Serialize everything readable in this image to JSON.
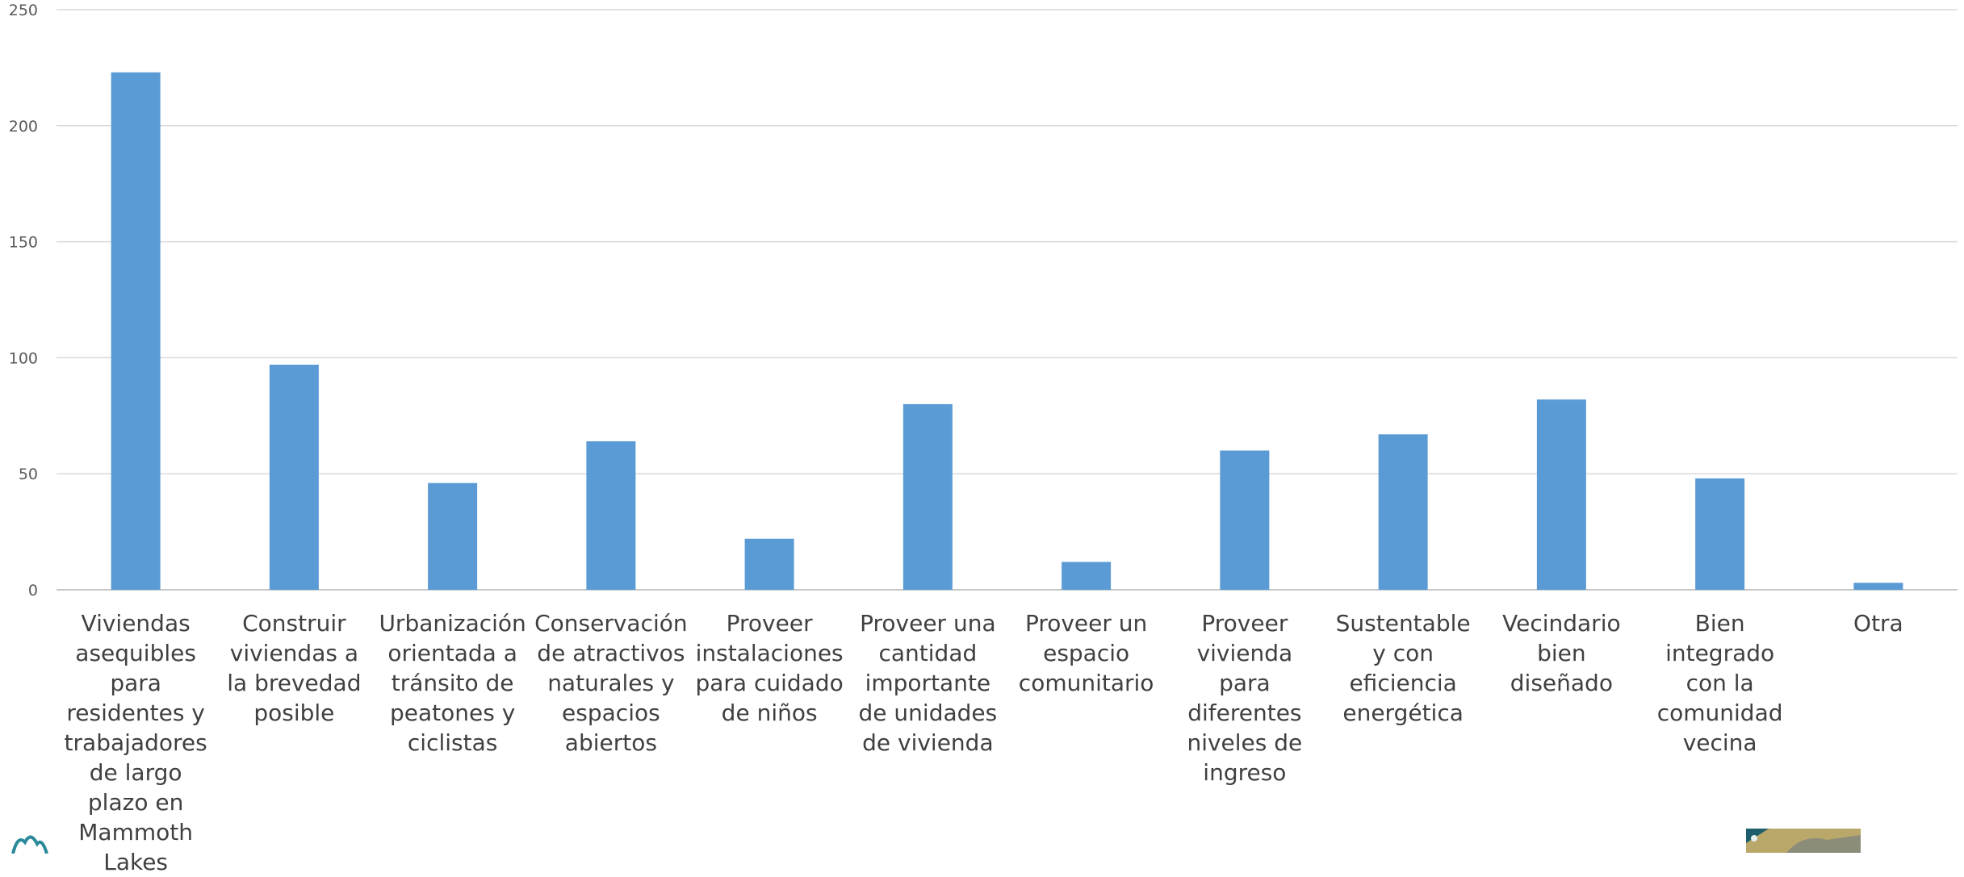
{
  "chart_data": {
    "type": "bar",
    "categories": [
      "Viviendas asequibles para residentes y trabajadores de largo plazo en Mammoth Lakes",
      "Construir viviendas a la brevedad posible",
      "Urbanización orientada a tránsito de peatones y ciclistas",
      "Conservación de atractivos naturales y espacios abiertos",
      "Proveer instalaciones para cuidado de niños",
      "Proveer una cantidad importante de unidades de vivienda",
      "Proveer un espacio comunitario",
      "Proveer vivienda para diferentes niveles de ingreso",
      "Sustentable y con eficiencia energética",
      "Vecindario bien diseñado",
      "Bien integrado con la comunidad vecina",
      "Otra"
    ],
    "values": [
      223,
      97,
      46,
      64,
      22,
      80,
      12,
      60,
      67,
      82,
      48,
      3
    ],
    "yticks": [
      "0",
      "50",
      "100",
      "150",
      "200",
      "250"
    ],
    "ylim": [
      0,
      250
    ],
    "title": "",
    "xlabel": "",
    "ylabel": "",
    "grid": true,
    "legend": "none",
    "bar_color": "#5b9bd5"
  },
  "colors": {
    "bar": "#5b9bd5",
    "grid": "#d9d9d9",
    "tick_text": "#595959",
    "label_text": "#404040"
  },
  "logos": {
    "left": "mountain-logo-icon",
    "right": "landscape-photo-thumbnail"
  }
}
